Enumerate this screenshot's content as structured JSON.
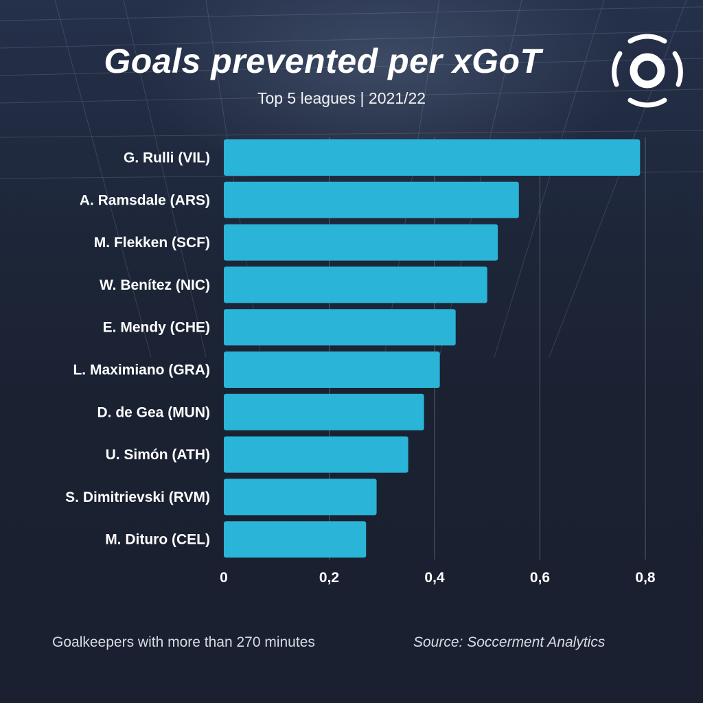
{
  "title": "Goals prevented per xGoT",
  "subtitle": "Top 5 leagues | 2021/22",
  "footnote": "Goalkeepers with more than 270 minutes",
  "source": "Source: Soccerment Analytics",
  "colors": {
    "background": "#1b2333",
    "bar": "#29b4d8",
    "text": "#ffffff",
    "grid": "#8a93a3"
  },
  "logo_icon": "soccerment-ball-logo",
  "chart_data": {
    "type": "bar",
    "orientation": "horizontal",
    "title": "Goals prevented per xGoT",
    "subtitle": "Top 5 leagues | 2021/22",
    "xlabel": "",
    "ylabel": "",
    "categories": [
      "G. Rulli (VIL)",
      "A. Ramsdale (ARS)",
      "M. Flekken (SCF)",
      "W. Benítez (NIC)",
      "E. Mendy (CHE)",
      "L. Maximiano (GRA)",
      "D. de Gea (MUN)",
      "U. Simón (ATH)",
      "S. Dimitrievski (RVM)",
      "M. Dituro (CEL)"
    ],
    "values": [
      0.79,
      0.56,
      0.52,
      0.5,
      0.44,
      0.41,
      0.38,
      0.35,
      0.29,
      0.27
    ],
    "xlim": [
      0,
      0.8
    ],
    "xticks": [
      0,
      0.2,
      0.4,
      0.6,
      0.8
    ],
    "xtick_labels": [
      "0",
      "0,2",
      "0,4",
      "0,6",
      "0,8"
    ],
    "grid": "vertical",
    "legend": "none"
  }
}
